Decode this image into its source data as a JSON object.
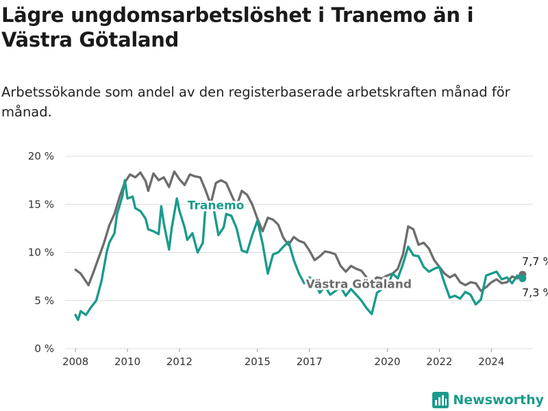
{
  "header": {
    "title": "Lägre ungdomsarbetslöshet i Tranemo än i Västra Götaland",
    "subtitle": "Arbetssökande som andel av den registerbaserade arbetskraften månad för månad."
  },
  "brand": {
    "name": "Newsworthy",
    "icon": "bar-chart-logo-icon",
    "color": "#1a9b8c"
  },
  "chart_data": {
    "type": "line",
    "y_ticks": [
      "0 %",
      "5 %",
      "10 %",
      "15 %",
      "20 %"
    ],
    "x_ticks": [
      "2008",
      "2010",
      "2012",
      "2015",
      "2017",
      "2020",
      "2022",
      "2024"
    ],
    "ylim": [
      0,
      20
    ],
    "xlim": [
      2007.6,
      2025.6
    ],
    "grid": "horizontal",
    "series": [
      {
        "name": "Västra Götaland",
        "color": "#6d6d6d",
        "end_label": "7,7 %",
        "points": [
          [
            2008.0,
            8.2
          ],
          [
            2008.2,
            7.8
          ],
          [
            2008.5,
            6.6
          ],
          [
            2008.7,
            8.0
          ],
          [
            2008.9,
            9.5
          ],
          [
            2009.1,
            11.0
          ],
          [
            2009.3,
            12.8
          ],
          [
            2009.5,
            14.0
          ],
          [
            2009.7,
            15.8
          ],
          [
            2009.9,
            17.3
          ],
          [
            2010.1,
            18.1
          ],
          [
            2010.3,
            17.8
          ],
          [
            2010.5,
            18.3
          ],
          [
            2010.7,
            17.4
          ],
          [
            2010.8,
            16.4
          ],
          [
            2011.0,
            18.2
          ],
          [
            2011.2,
            17.5
          ],
          [
            2011.4,
            17.8
          ],
          [
            2011.6,
            16.8
          ],
          [
            2011.8,
            18.4
          ],
          [
            2012.0,
            17.6
          ],
          [
            2012.2,
            17.0
          ],
          [
            2012.4,
            18.1
          ],
          [
            2012.6,
            17.9
          ],
          [
            2012.8,
            17.8
          ],
          [
            2013.0,
            16.5
          ],
          [
            2013.2,
            15.0
          ],
          [
            2013.4,
            17.2
          ],
          [
            2013.6,
            17.5
          ],
          [
            2013.8,
            17.2
          ],
          [
            2014.0,
            16.0
          ],
          [
            2014.2,
            14.8
          ],
          [
            2014.4,
            16.4
          ],
          [
            2014.6,
            16.0
          ],
          [
            2014.8,
            15.0
          ],
          [
            2015.0,
            13.5
          ],
          [
            2015.2,
            12.2
          ],
          [
            2015.4,
            13.6
          ],
          [
            2015.6,
            13.4
          ],
          [
            2015.8,
            12.9
          ],
          [
            2016.0,
            11.5
          ],
          [
            2016.2,
            10.8
          ],
          [
            2016.4,
            11.6
          ],
          [
            2016.6,
            11.2
          ],
          [
            2016.8,
            11.0
          ],
          [
            2017.0,
            10.2
          ],
          [
            2017.2,
            9.2
          ],
          [
            2017.4,
            9.6
          ],
          [
            2017.6,
            10.1
          ],
          [
            2017.8,
            10.0
          ],
          [
            2018.0,
            9.8
          ],
          [
            2018.2,
            8.6
          ],
          [
            2018.4,
            8.0
          ],
          [
            2018.6,
            8.6
          ],
          [
            2018.8,
            8.3
          ],
          [
            2019.0,
            8.1
          ],
          [
            2019.2,
            7.4
          ],
          [
            2019.4,
            7.0
          ],
          [
            2019.6,
            7.4
          ],
          [
            2019.8,
            7.3
          ],
          [
            2020.0,
            7.6
          ],
          [
            2020.2,
            7.8
          ],
          [
            2020.4,
            8.3
          ],
          [
            2020.6,
            9.8
          ],
          [
            2020.8,
            12.7
          ],
          [
            2021.0,
            12.4
          ],
          [
            2021.2,
            10.8
          ],
          [
            2021.4,
            11.0
          ],
          [
            2021.6,
            10.4
          ],
          [
            2021.8,
            9.2
          ],
          [
            2022.0,
            8.5
          ],
          [
            2022.2,
            7.8
          ],
          [
            2022.4,
            7.4
          ],
          [
            2022.6,
            7.7
          ],
          [
            2022.8,
            6.9
          ],
          [
            2023.0,
            6.6
          ],
          [
            2023.2,
            6.9
          ],
          [
            2023.4,
            6.8
          ],
          [
            2023.6,
            6.0
          ],
          [
            2023.8,
            6.4
          ],
          [
            2024.0,
            6.9
          ],
          [
            2024.2,
            7.2
          ],
          [
            2024.4,
            6.8
          ],
          [
            2024.6,
            6.9
          ],
          [
            2024.8,
            7.5
          ],
          [
            2025.0,
            7.3
          ],
          [
            2025.2,
            7.7
          ]
        ]
      },
      {
        "name": "Tranemo",
        "color": "#1a9b8c",
        "end_label": "7,3 %",
        "points": [
          [
            2008.0,
            3.5
          ],
          [
            2008.1,
            3.0
          ],
          [
            2008.2,
            3.9
          ],
          [
            2008.4,
            3.5
          ],
          [
            2008.6,
            4.3
          ],
          [
            2008.8,
            5.0
          ],
          [
            2009.0,
            7.0
          ],
          [
            2009.2,
            10.0
          ],
          [
            2009.3,
            11.0
          ],
          [
            2009.5,
            12.0
          ],
          [
            2009.6,
            14.0
          ],
          [
            2009.8,
            15.8
          ],
          [
            2009.9,
            17.5
          ],
          [
            2010.0,
            15.6
          ],
          [
            2010.2,
            15.8
          ],
          [
            2010.3,
            14.6
          ],
          [
            2010.5,
            14.3
          ],
          [
            2010.7,
            13.5
          ],
          [
            2010.8,
            12.4
          ],
          [
            2011.0,
            12.2
          ],
          [
            2011.2,
            11.9
          ],
          [
            2011.3,
            14.8
          ],
          [
            2011.4,
            13.0
          ],
          [
            2011.6,
            10.3
          ],
          [
            2011.7,
            12.5
          ],
          [
            2011.9,
            15.6
          ],
          [
            2012.0,
            14.3
          ],
          [
            2012.2,
            12.6
          ],
          [
            2012.3,
            11.3
          ],
          [
            2012.5,
            12.0
          ],
          [
            2012.7,
            10.0
          ],
          [
            2012.9,
            11.0
          ],
          [
            2013.0,
            14.6
          ],
          [
            2013.2,
            15.1
          ],
          [
            2013.3,
            14.8
          ],
          [
            2013.5,
            11.8
          ],
          [
            2013.7,
            12.6
          ],
          [
            2013.8,
            14.0
          ],
          [
            2014.0,
            13.8
          ],
          [
            2014.2,
            12.5
          ],
          [
            2014.4,
            10.2
          ],
          [
            2014.6,
            10.0
          ],
          [
            2014.8,
            11.8
          ],
          [
            2015.0,
            13.3
          ],
          [
            2015.2,
            10.9
          ],
          [
            2015.4,
            7.8
          ],
          [
            2015.6,
            9.8
          ],
          [
            2015.8,
            10.0
          ],
          [
            2016.0,
            10.6
          ],
          [
            2016.2,
            11.1
          ],
          [
            2016.4,
            9.2
          ],
          [
            2016.6,
            7.8
          ],
          [
            2016.8,
            6.8
          ],
          [
            2017.0,
            7.4
          ],
          [
            2017.2,
            7.0
          ],
          [
            2017.4,
            5.8
          ],
          [
            2017.6,
            6.5
          ],
          [
            2017.8,
            5.6
          ],
          [
            2018.0,
            6.0
          ],
          [
            2018.2,
            6.4
          ],
          [
            2018.4,
            5.5
          ],
          [
            2018.6,
            6.2
          ],
          [
            2018.8,
            5.6
          ],
          [
            2019.0,
            5.0
          ],
          [
            2019.2,
            4.2
          ],
          [
            2019.4,
            3.6
          ],
          [
            2019.6,
            5.8
          ],
          [
            2019.8,
            6.2
          ],
          [
            2020.0,
            6.5
          ],
          [
            2020.2,
            7.8
          ],
          [
            2020.4,
            7.3
          ],
          [
            2020.6,
            8.8
          ],
          [
            2020.8,
            10.6
          ],
          [
            2021.0,
            9.7
          ],
          [
            2021.2,
            9.6
          ],
          [
            2021.4,
            8.5
          ],
          [
            2021.6,
            8.0
          ],
          [
            2021.8,
            8.3
          ],
          [
            2022.0,
            8.5
          ],
          [
            2022.2,
            6.8
          ],
          [
            2022.4,
            5.3
          ],
          [
            2022.6,
            5.5
          ],
          [
            2022.8,
            5.2
          ],
          [
            2023.0,
            5.9
          ],
          [
            2023.2,
            5.6
          ],
          [
            2023.4,
            4.6
          ],
          [
            2023.6,
            5.1
          ],
          [
            2023.8,
            7.6
          ],
          [
            2024.0,
            7.8
          ],
          [
            2024.2,
            8.0
          ],
          [
            2024.4,
            7.2
          ],
          [
            2024.6,
            7.4
          ],
          [
            2024.8,
            6.8
          ],
          [
            2025.0,
            7.6
          ],
          [
            2025.2,
            7.3
          ]
        ]
      }
    ]
  }
}
